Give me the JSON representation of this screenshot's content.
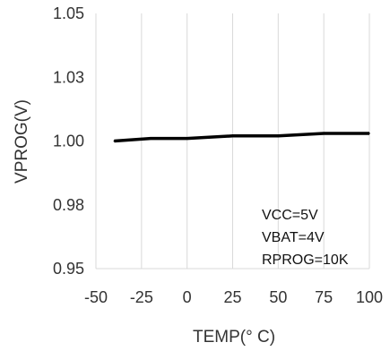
{
  "chart_data": {
    "type": "line",
    "title": "",
    "xlabel": "TEMP(° C)",
    "ylabel": "VPROG(V)",
    "x_ticks": [
      "-50",
      "-25",
      "0",
      "25",
      "50",
      "75",
      "100"
    ],
    "y_ticks": [
      "1.05",
      "1.03",
      "1.00",
      "0.98",
      "0.95"
    ],
    "xlim": [
      -50,
      100
    ],
    "ylim": [
      0.95,
      1.05
    ],
    "grid": "vertical",
    "series": [
      {
        "x": [
          -40,
          -20,
          0,
          25,
          50,
          75,
          100
        ],
        "values": [
          1.0,
          1.001,
          1.001,
          1.002,
          1.002,
          1.003,
          1.003
        ],
        "color": "#000000"
      }
    ],
    "annotations": [
      "VCC=5V",
      "VBAT=4V",
      "RPROG=10K"
    ]
  }
}
